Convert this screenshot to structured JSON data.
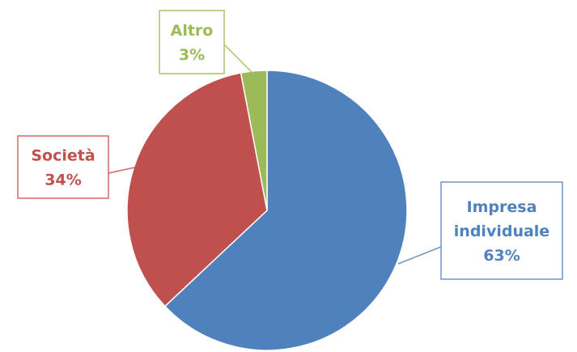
{
  "chart_data": {
    "type": "pie",
    "title": "",
    "slices": [
      {
        "label_lines": [
          "Impresa",
          "individuale"
        ],
        "value": 63,
        "value_label": "63%",
        "color": "#4F81BD",
        "border_color": "#6E95C7"
      },
      {
        "label_lines": [
          "Società"
        ],
        "value": 34,
        "value_label": "34%",
        "color": "#C0504D",
        "border_color": "#D06A67"
      },
      {
        "label_lines": [
          "Altro"
        ],
        "value": 3,
        "value_label": "3%",
        "color": "#9BBB59",
        "border_color": "#A9C46C"
      }
    ],
    "start_angle_deg": 0,
    "direction": "clockwise",
    "legend": "none",
    "data_labels": "callouts"
  }
}
